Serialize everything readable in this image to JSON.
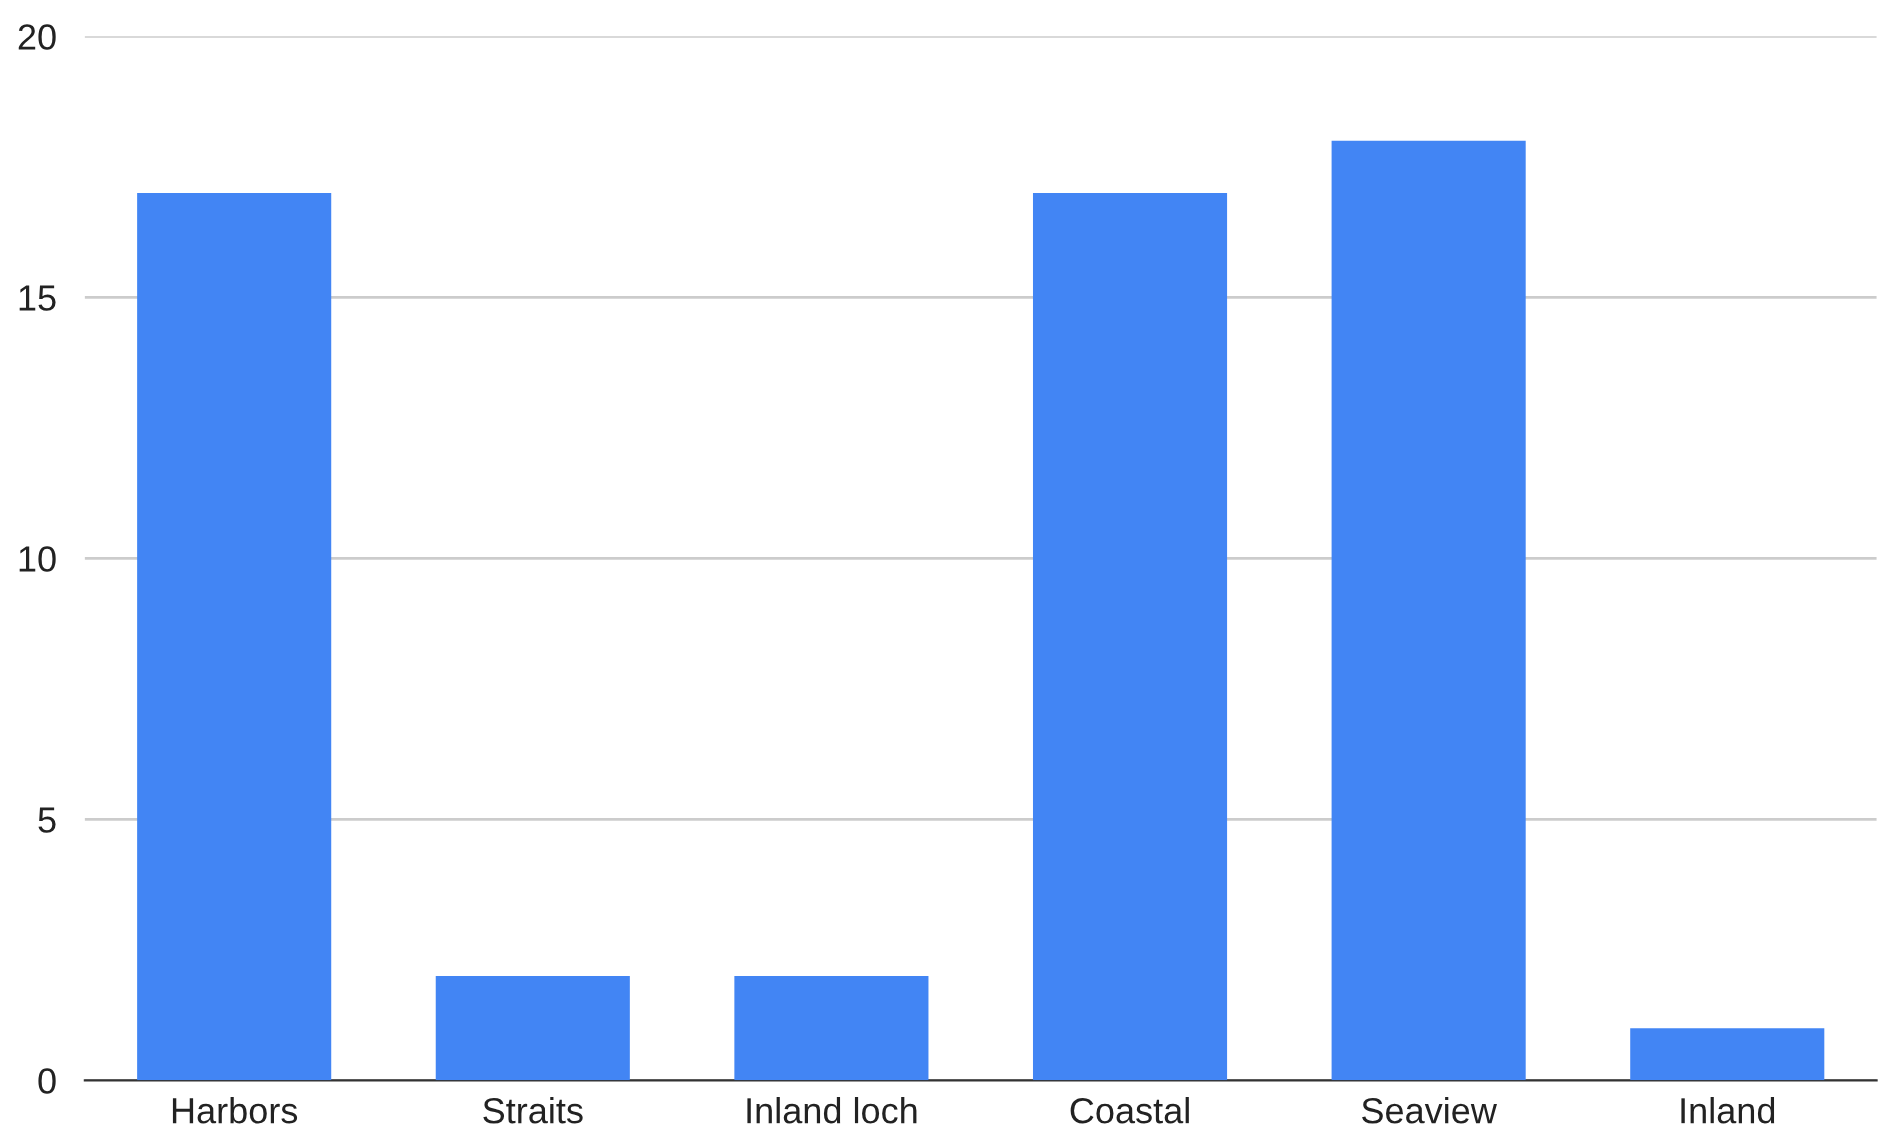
{
  "chart_data": {
    "type": "bar",
    "categories": [
      "Harbors",
      "Straits",
      "Inland loch",
      "Coastal",
      "Seaview",
      "Inland"
    ],
    "values": [
      17,
      2,
      2,
      17,
      18,
      1
    ],
    "color": "#4285f4",
    "ylim": [
      0,
      20
    ],
    "yticks": [
      0,
      5,
      10,
      15,
      20
    ],
    "grid": "y"
  }
}
